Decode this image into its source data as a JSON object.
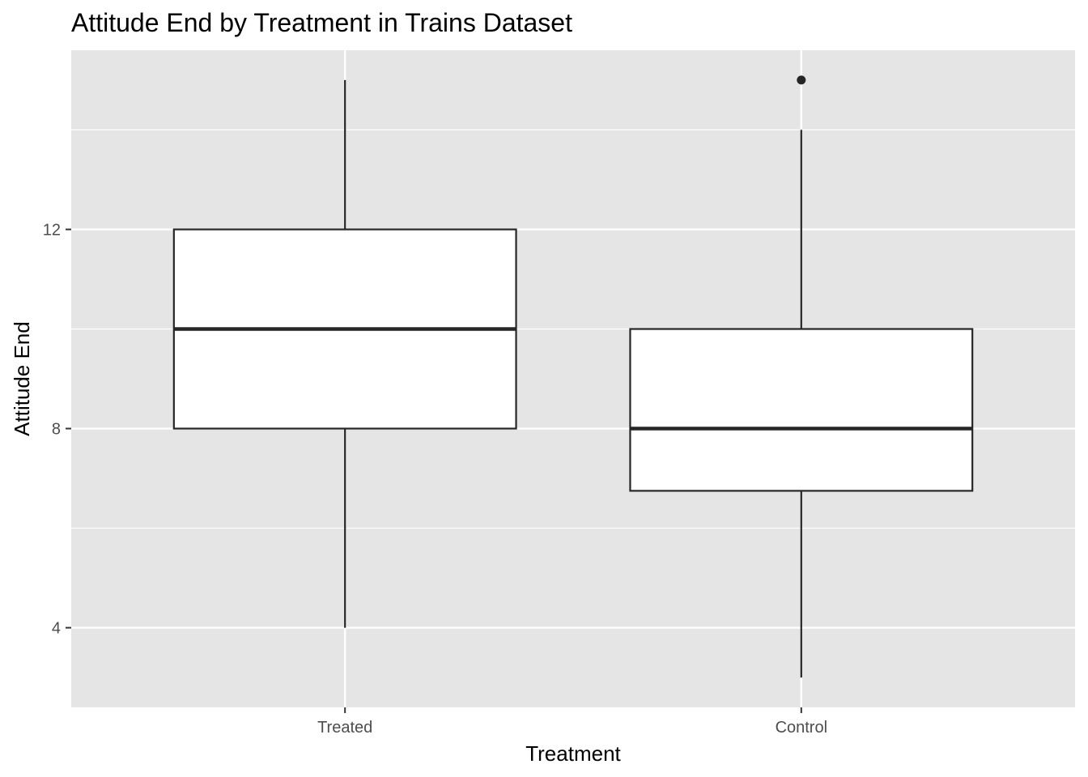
{
  "chart_data": {
    "type": "box",
    "title": "Attitude End by Treatment in Trains Dataset",
    "xlabel": "Treatment",
    "ylabel": "Attitude End",
    "categories": [
      "Treated",
      "Control"
    ],
    "boxes": [
      {
        "category": "Treated",
        "whisker_low": 4,
        "q1": 8,
        "median": 10,
        "q3": 12,
        "whisker_high": 15,
        "outliers": []
      },
      {
        "category": "Control",
        "whisker_low": 3,
        "q1": 6.75,
        "median": 8,
        "q3": 10,
        "whisker_high": 14,
        "outliers": [
          15
        ]
      }
    ],
    "ylim": [
      2.4,
      15.6
    ],
    "yticks": [
      4,
      8,
      12
    ],
    "grid": true,
    "colors": {
      "panel": "#e5e5e5",
      "grid": "#ffffff",
      "box_fill": "#ffffff",
      "box_stroke": "#262626",
      "tick": "#333333"
    }
  }
}
